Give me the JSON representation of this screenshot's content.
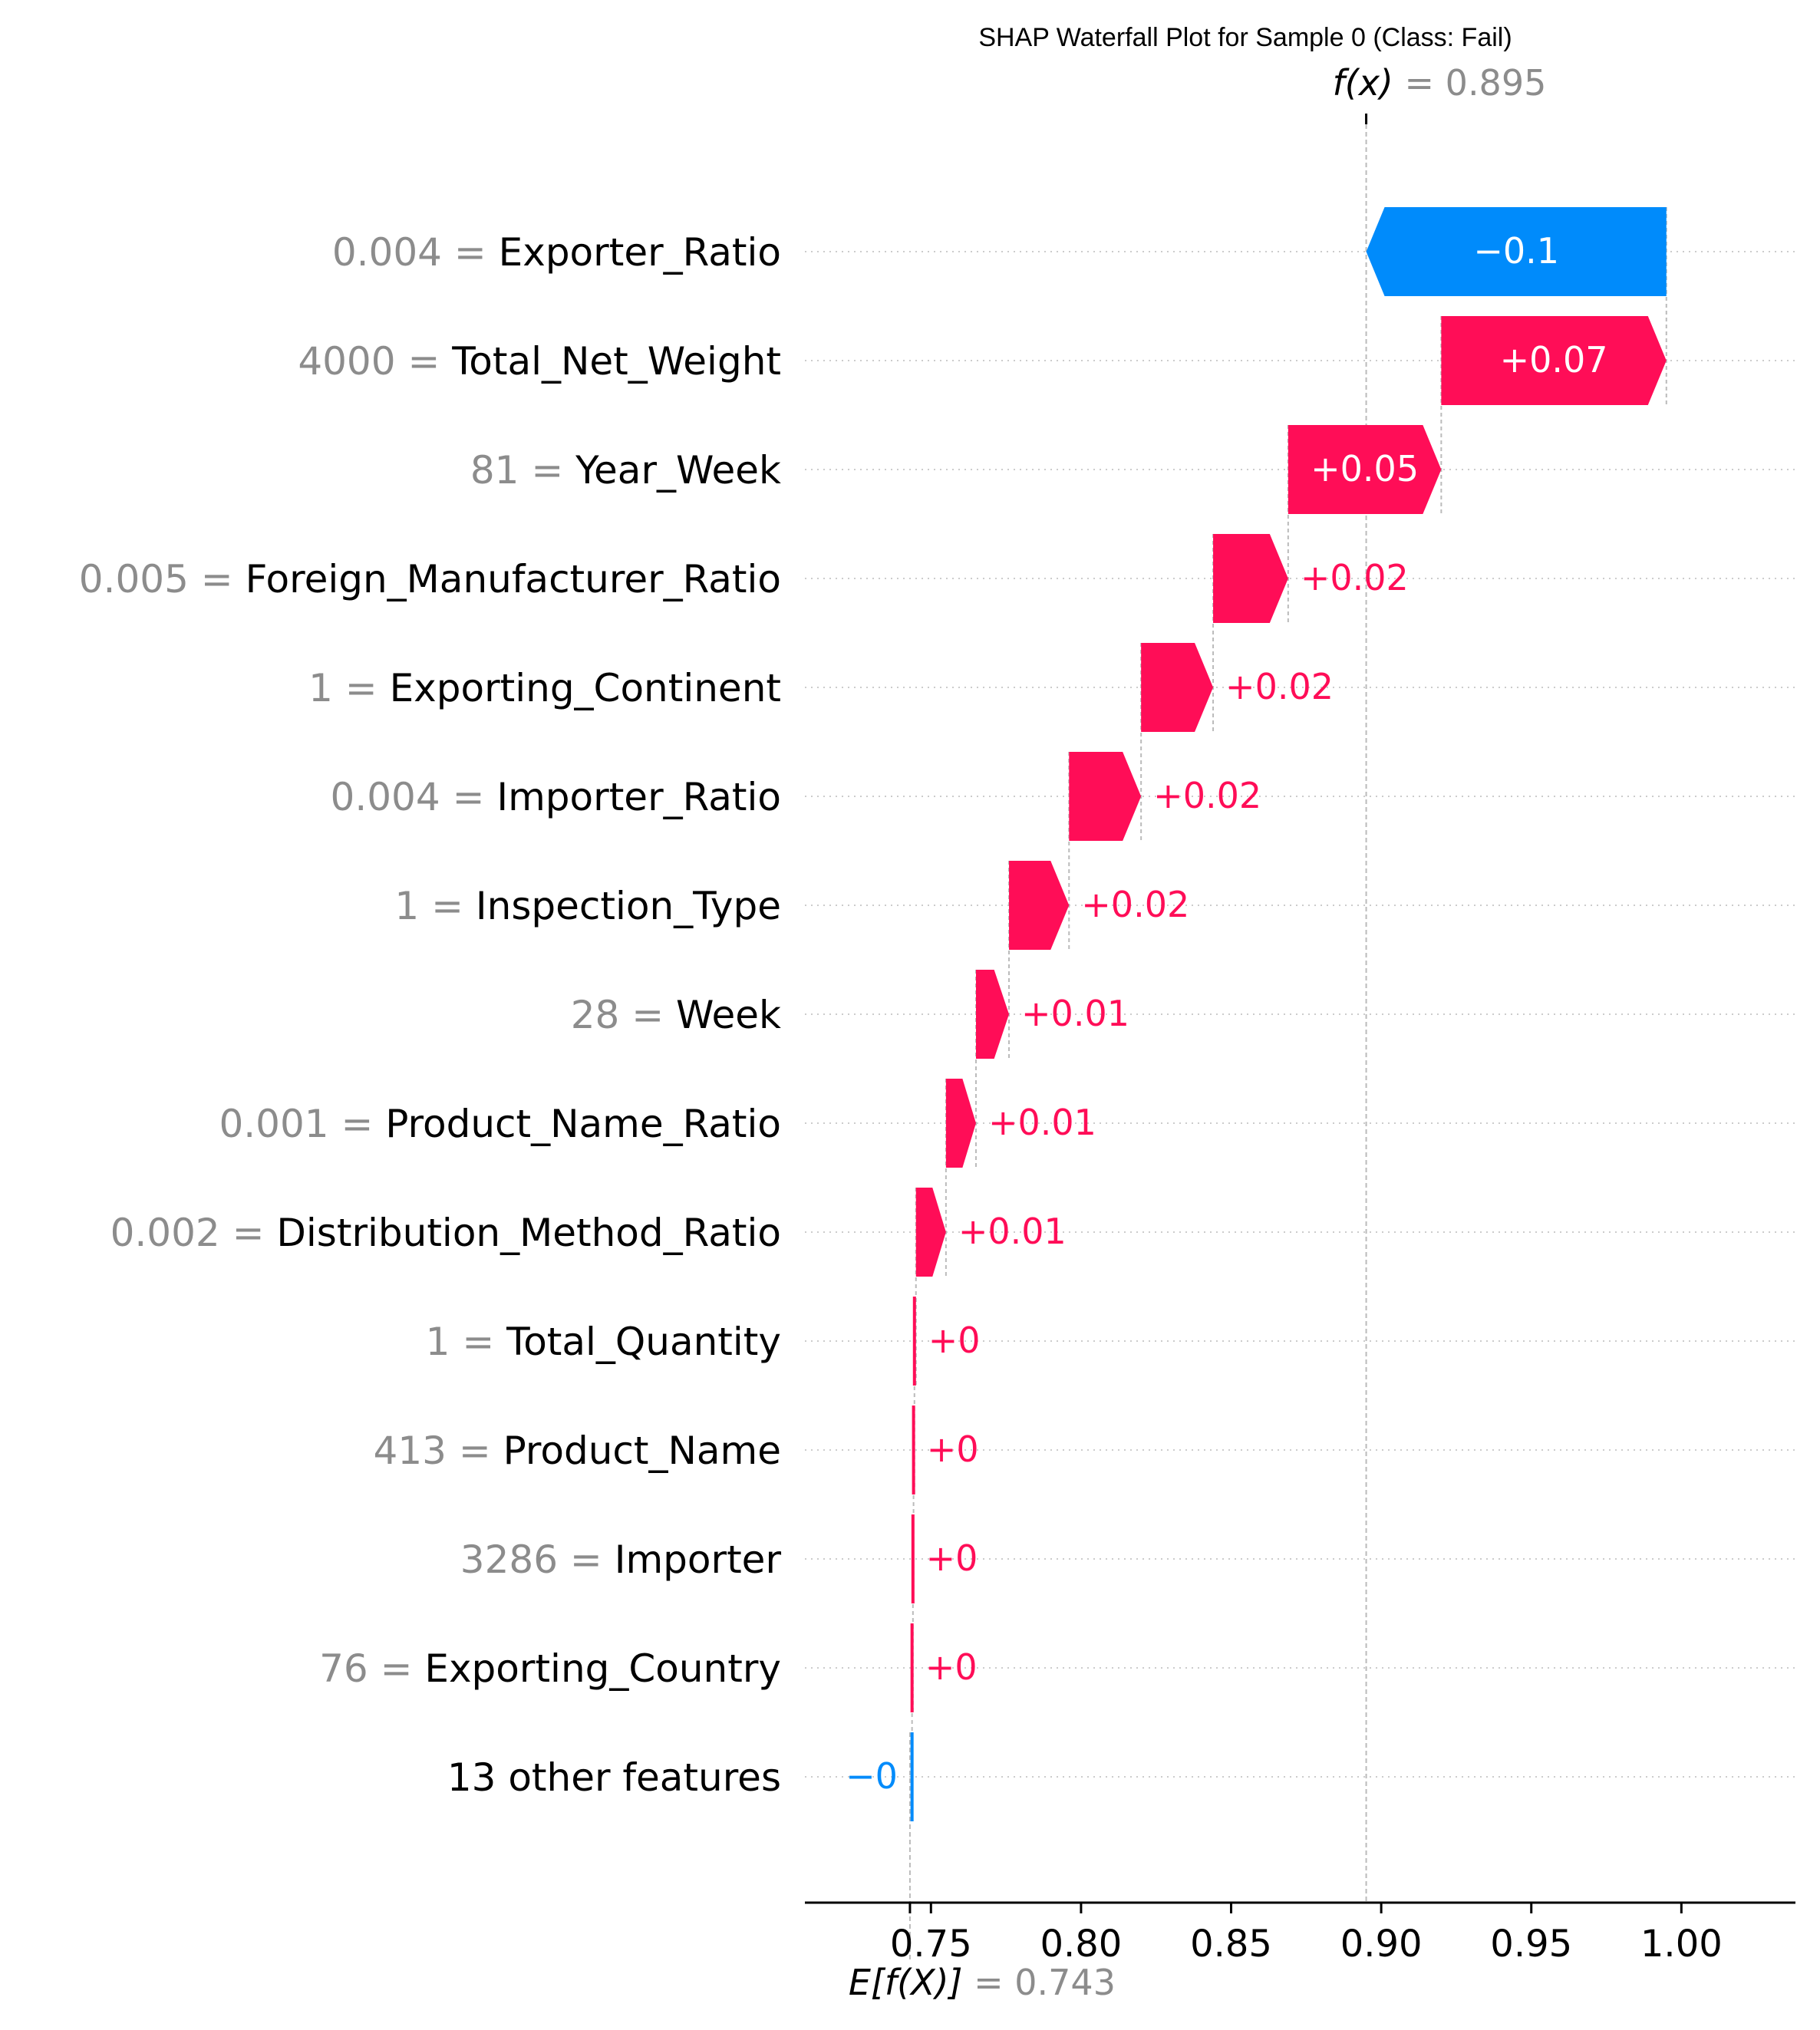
{
  "chart_data": {
    "type": "waterfall",
    "title": "SHAP Waterfall Plot for Sample 0 (Class: Fail)",
    "base_value": 0.743,
    "base_label": "E[f(X)]",
    "output_value": 0.895,
    "output_label": "f(x)",
    "xlim": [
      0.708,
      1.038
    ],
    "xticks": [
      0.75,
      0.8,
      0.85,
      0.9,
      0.95,
      1.0
    ],
    "xtick_labels": [
      "0.75",
      "0.80",
      "0.85",
      "0.90",
      "0.95",
      "1.00"
    ],
    "grid": "horizontal dotted per row",
    "colors": {
      "positive": "#ff0d57",
      "negative": "#008bfb",
      "feature_value": "#8c8c8c",
      "guide": "#bbbbbb"
    },
    "features": [
      {
        "value": "0.004",
        "name": "Exporter_Ratio",
        "start": 0.995,
        "end": 0.895,
        "label": "−0.1"
      },
      {
        "value": "4000",
        "name": "Total_Net_Weight",
        "start": 0.92,
        "end": 0.995,
        "label": "+0.07"
      },
      {
        "value": "81",
        "name": "Year_Week",
        "start": 0.869,
        "end": 0.92,
        "label": "+0.05"
      },
      {
        "value": "0.005",
        "name": "Foreign_Manufacturer_Ratio",
        "start": 0.844,
        "end": 0.869,
        "label": "+0.02"
      },
      {
        "value": "1",
        "name": "Exporting_Continent",
        "start": 0.82,
        "end": 0.844,
        "label": "+0.02"
      },
      {
        "value": "0.004",
        "name": "Importer_Ratio",
        "start": 0.796,
        "end": 0.82,
        "label": "+0.02"
      },
      {
        "value": "1",
        "name": "Inspection_Type",
        "start": 0.776,
        "end": 0.796,
        "label": "+0.02"
      },
      {
        "value": "28",
        "name": "Week",
        "start": 0.765,
        "end": 0.776,
        "label": "+0.01"
      },
      {
        "value": "0.001",
        "name": "Product_Name_Ratio",
        "start": 0.755,
        "end": 0.765,
        "label": "+0.01"
      },
      {
        "value": "0.002",
        "name": "Distribution_Method_Ratio",
        "start": 0.745,
        "end": 0.755,
        "label": "+0.01"
      },
      {
        "value": "1",
        "name": "Total_Quantity",
        "start": 0.7445,
        "end": 0.745,
        "label": "+0"
      },
      {
        "value": "413",
        "name": "Product_Name",
        "start": 0.7442,
        "end": 0.7445,
        "label": "+0"
      },
      {
        "value": "3286",
        "name": "Importer",
        "start": 0.744,
        "end": 0.7442,
        "label": "+0"
      },
      {
        "value": "76",
        "name": "Exporting_Country",
        "start": 0.7437,
        "end": 0.744,
        "label": "+0"
      },
      {
        "value": "",
        "name": "13 other features",
        "start": 0.7437,
        "end": 0.743,
        "label": "−0"
      }
    ]
  }
}
